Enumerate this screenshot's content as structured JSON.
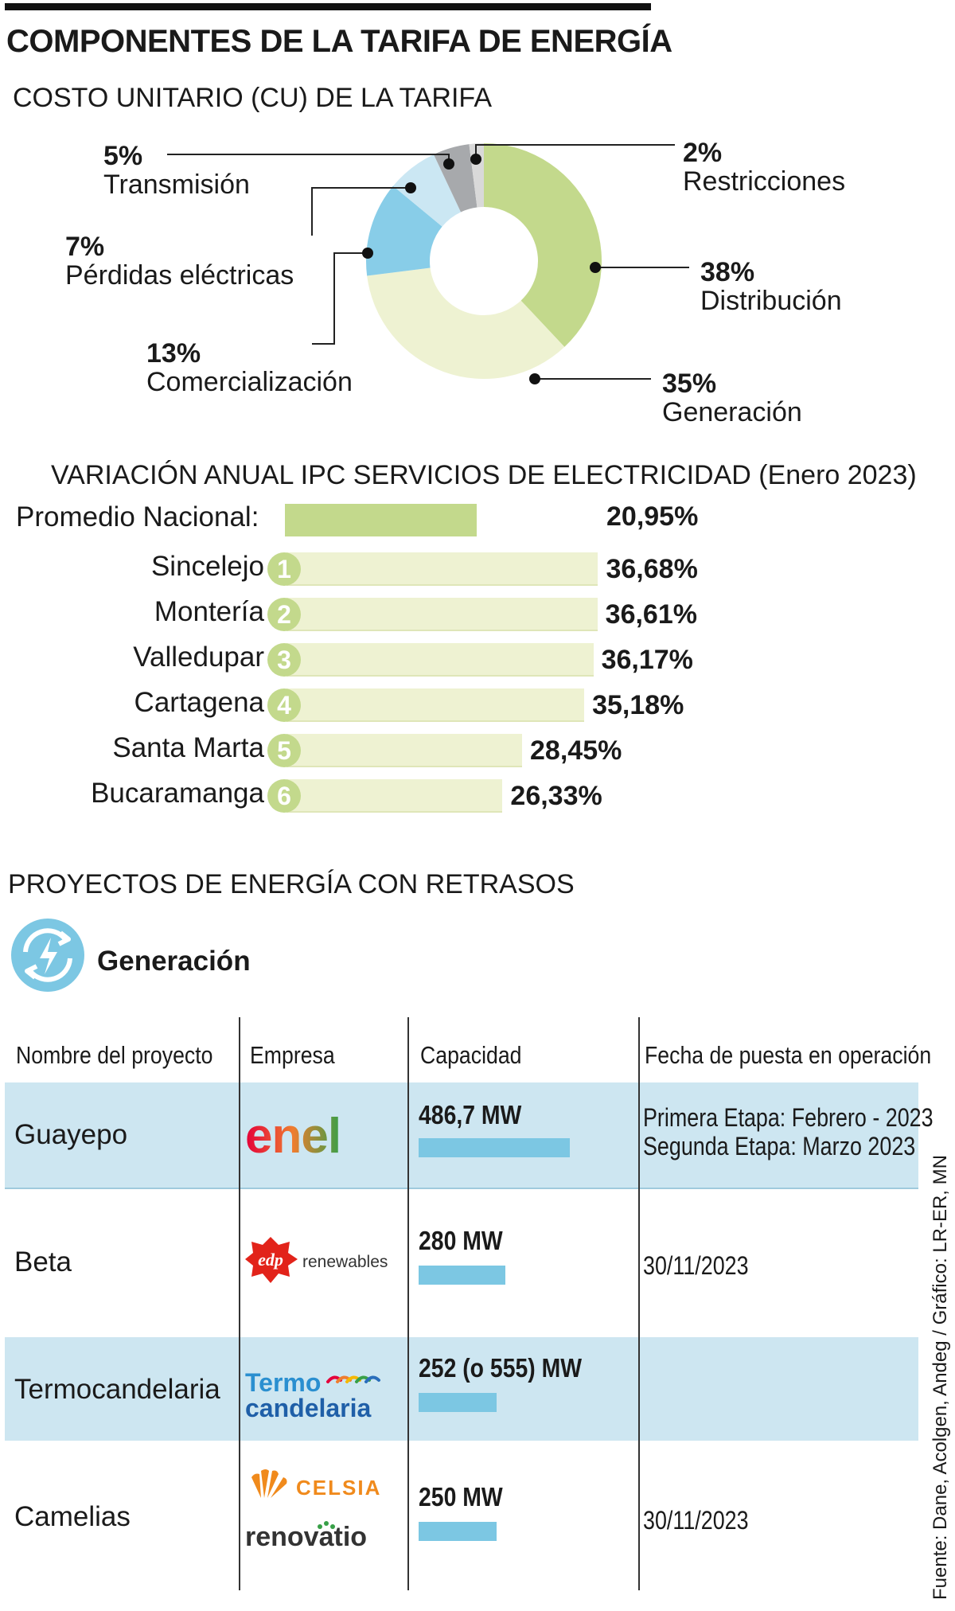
{
  "header": {
    "title": "COMPONENTES DE LA TARIFA DE ENERGÍA",
    "subtitle": "COSTO UNITARIO (CU) DE LA TARIFA"
  },
  "colors": {
    "dist": "#c3d98c",
    "gen": "#eef2d2",
    "com": "#88cde8",
    "per": "#cbe7f3",
    "tra": "#a7a9ac",
    "res": "#d9d9d9",
    "accent_blue": "#7cc7e3",
    "band": "#cde6f1"
  },
  "chart_data": [
    {
      "type": "pie",
      "title": "COSTO UNITARIO (CU) DE LA TARIFA",
      "slices": [
        {
          "label": "Distribución",
          "value": 38,
          "pct": "38%",
          "color": "#c3d98c"
        },
        {
          "label": "Generación",
          "value": 35,
          "pct": "35%",
          "color": "#eef2d2"
        },
        {
          "label": "Comercialización",
          "value": 13,
          "pct": "13%",
          "color": "#88cde8"
        },
        {
          "label": "Pérdidas eléctricas",
          "value": 7,
          "pct": "7%",
          "color": "#cbe7f3"
        },
        {
          "label": "Transmisión",
          "value": 5,
          "pct": "5%",
          "color": "#a7a9ac"
        },
        {
          "label": "Restricciones",
          "value": 2,
          "pct": "2%",
          "color": "#d9d9d9"
        }
      ]
    },
    {
      "type": "bar",
      "title": "VARIACIÓN ANUAL IPC SERVICIOS DE ELECTRICIDAD (Enero 2023)",
      "national": {
        "label": "Promedio Nacional:",
        "value": 20.95,
        "text": "20,95%"
      },
      "categories": [
        "Sincelejo",
        "Montería",
        "Valledupar",
        "Cartagena",
        "Santa Marta",
        "Bucaramanga"
      ],
      "ranks": [
        "1",
        "2",
        "3",
        "4",
        "5",
        "6"
      ],
      "values": [
        36.68,
        36.61,
        36.17,
        35.18,
        28.45,
        26.33
      ],
      "value_labels": [
        "36,68%",
        "36,61%",
        "36,17%",
        "35,18%",
        "28,45%",
        "26,33%"
      ],
      "xlim": [
        0,
        40
      ]
    },
    {
      "type": "table",
      "title": "PROYECTOS DE ENERGÍA CON RETRASOS",
      "section": "Generación",
      "columns": [
        "Nombre del proyecto",
        "Empresa",
        "Capacidad",
        "Fecha de puesta en operación"
      ],
      "rows": [
        {
          "name": "Guayepo",
          "company": "enel",
          "capacity": "486,7 MW",
          "capacity_mw": 486.7,
          "date": [
            "Primera Etapa: Febrero - 2023",
            "Segunda Etapa: Marzo 2023"
          ]
        },
        {
          "name": "Beta",
          "company": "edp renewables",
          "capacity": "280 MW",
          "capacity_mw": 280,
          "date": [
            "30/11/2023"
          ]
        },
        {
          "name": "Termocandelaria",
          "company": "Termo candelaria",
          "capacity": "252 (o 555) MW",
          "capacity_mw": 252,
          "date": []
        },
        {
          "name": "Camelias",
          "company": "CELSIA renovatio",
          "capacity": "250 MW",
          "capacity_mw": 250,
          "date": [
            "30/11/2023"
          ]
        }
      ]
    }
  ],
  "logos": {
    "enel": "enel",
    "edp_mark": "edp",
    "edp_word": "renewables",
    "termo_1": "Termo",
    "termo_2": "candelaria",
    "celsia": "CELSIA",
    "renovatio": "renovatio"
  },
  "source": "Fuente: Dane, Acolgen, Andeg / Gráfico: LR-ER, MN"
}
